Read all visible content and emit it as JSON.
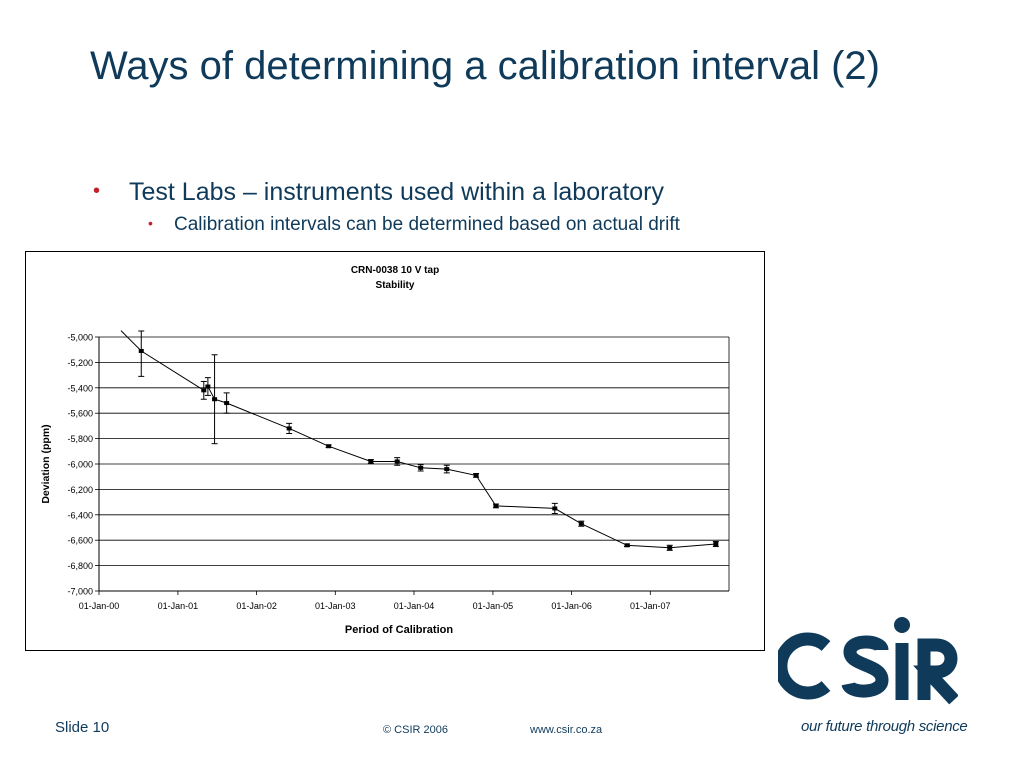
{
  "slide": {
    "title": "Ways of determining a calibration interval (2)",
    "bullet_1": "Test Labs – instruments used within a laboratory",
    "bullet_2": "Calibration intervals can be determined based on actual drift",
    "bullet_char": "•"
  },
  "footer": {
    "slide_number": "Slide 10",
    "copyright": "© CSIR  2006",
    "url": "www.csir.co.za"
  },
  "brand": {
    "logo_text": "CSIR",
    "tagline": "our future through science",
    "color_primary": "#0f3a5a",
    "color_bullet": "#c0202a"
  },
  "chart_data": {
    "type": "scatter",
    "title": "CRN-0038 10 V tap",
    "subtitle": "Stability",
    "xlabel": "Period of Calibration",
    "ylabel": "Deviation (ppm)",
    "x_ticks": [
      "01-Jan-00",
      "01-Jan-01",
      "01-Jan-02",
      "01-Jan-03",
      "01-Jan-04",
      "01-Jan-05",
      "01-Jan-06",
      "01-Jan-07"
    ],
    "xlim": [
      "2000-01-01",
      "2008-01-01"
    ],
    "y_ticks": [
      "-5,000",
      "-5,200",
      "-5,400",
      "-5,600",
      "-5,800",
      "-6,000",
      "-6,200",
      "-6,400",
      "-6,600",
      "-6,800",
      "-7,000"
    ],
    "ylim": [
      -7000,
      -5000
    ],
    "grid": "horizontal",
    "legend": "none",
    "line_from_y_axis_at": -4950,
    "series": [
      {
        "points": [
          {
            "x": "2000-07-15",
            "y": -5110,
            "err": 200
          },
          {
            "x": "2001-05-01",
            "y": -5420,
            "err": 70
          },
          {
            "x": "2001-05-20",
            "y": -5390,
            "err": 70
          },
          {
            "x": "2001-06-20",
            "y": -5490,
            "err": 350
          },
          {
            "x": "2001-08-15",
            "y": -5520,
            "err": 80
          },
          {
            "x": "2002-06-01",
            "y": -5720,
            "err": 40
          },
          {
            "x": "2002-12-01",
            "y": -5860,
            "err": 10
          },
          {
            "x": "2003-06-15",
            "y": -5980,
            "err": 15
          },
          {
            "x": "2003-10-15",
            "y": -5980,
            "err": 30
          },
          {
            "x": "2004-02-01",
            "y": -6030,
            "err": 25
          },
          {
            "x": "2004-06-01",
            "y": -6040,
            "err": 30
          },
          {
            "x": "2004-10-15",
            "y": -6090,
            "err": 15
          },
          {
            "x": "2005-01-15",
            "y": -6330,
            "err": 15
          },
          {
            "x": "2005-10-15",
            "y": -6350,
            "err": 40
          },
          {
            "x": "2006-02-15",
            "y": -6470,
            "err": 20
          },
          {
            "x": "2006-09-15",
            "y": -6640,
            "err": 10
          },
          {
            "x": "2007-04-01",
            "y": -6660,
            "err": 20
          },
          {
            "x": "2007-11-01",
            "y": -6630,
            "err": 20
          }
        ]
      }
    ]
  }
}
